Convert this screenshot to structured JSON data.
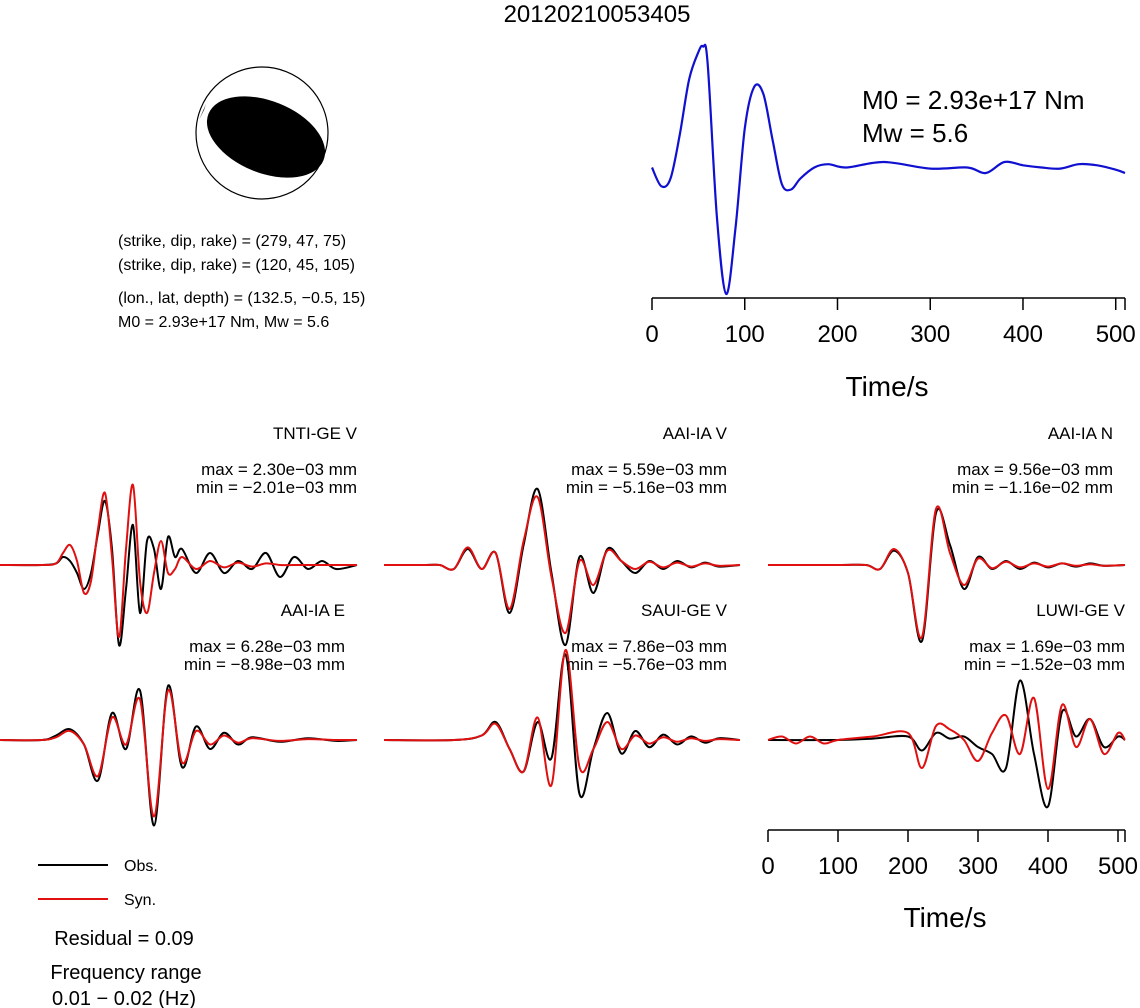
{
  "title": "20120210053405",
  "beachball": {
    "nodal_plane_1": "(strike, dip, rake) = (279, 47, 75)",
    "nodal_plane_2": "(strike, dip, rake) = (120, 45, 105)",
    "location": "(lon., lat, depth) = (132.5, −0.5, 15)",
    "moment_line": "M0 = 2.93e+17 Nm, Mw = 5.6"
  },
  "stf": {
    "m0_label": "M0 = 2.93e+17 Nm",
    "mw_label": "Mw = 5.6",
    "color": "#1010d0"
  },
  "time_axis": {
    "label": "Time/s",
    "ticks": [
      "0",
      "100",
      "200",
      "300",
      "400",
      "500"
    ]
  },
  "legend": {
    "obs_label": "Obs.",
    "syn_label": "Syn.",
    "obs_color": "#000000",
    "syn_color": "#e01010"
  },
  "residual": "Residual = 0.09",
  "frequency_title": "Frequency range",
  "frequency_value": "0.01 − 0.02 (Hz)",
  "chart_data": [
    {
      "type": "line",
      "description": "source time function",
      "x_unit": "s",
      "xlim": [
        0,
        510
      ],
      "x": [
        0,
        10,
        20,
        30,
        40,
        50,
        55,
        60,
        70,
        80,
        90,
        100,
        110,
        120,
        130,
        140,
        150,
        160,
        175,
        190,
        210,
        250,
        300,
        340,
        360,
        380,
        400,
        420,
        440,
        460,
        480,
        500,
        510
      ],
      "values": [
        0.05,
        -0.12,
        -0.05,
        0.35,
        0.85,
        1.1,
        1.15,
        1.0,
        -0.4,
        -1.1,
        -0.5,
        0.4,
        0.78,
        0.72,
        0.3,
        -0.1,
        -0.15,
        -0.05,
        0.05,
        0.08,
        0.05,
        0.1,
        0.04,
        0.05,
        0.0,
        0.1,
        0.07,
        0.05,
        0.04,
        0.08,
        0.07,
        0.03,
        0.0
      ]
    },
    {
      "type": "line",
      "station": "TNTI-GE V",
      "max": "max = 2.30e−03 mm",
      "min": "min = −2.01e−03 mm",
      "series": [
        {
          "name": "Obs.",
          "x": [
            0,
            60,
            80,
            90,
            100,
            110,
            120,
            130,
            140,
            150,
            160,
            170,
            180,
            190,
            200,
            210,
            220,
            230,
            240,
            250,
            260,
            280,
            300,
            320,
            340,
            360,
            380,
            400,
            420,
            440,
            460,
            480,
            510
          ],
          "values": [
            0,
            0,
            0.02,
            0.1,
            0.05,
            -0.1,
            -0.3,
            -0.1,
            0.4,
            0.8,
            0.2,
            -1.0,
            -0.3,
            0.5,
            -0.6,
            0.3,
            0.2,
            -0.3,
            0.35,
            0.1,
            0.2,
            -0.1,
            0.15,
            -0.1,
            0.05,
            -0.05,
            0.15,
            -0.15,
            0.1,
            -0.05,
            0.05,
            -0.05,
            0
          ]
        },
        {
          "name": "Syn.",
          "x": [
            0,
            60,
            80,
            90,
            100,
            110,
            120,
            130,
            140,
            150,
            160,
            170,
            180,
            190,
            200,
            210,
            220,
            230,
            240,
            250,
            260,
            280,
            300,
            320,
            340,
            360,
            380,
            400,
            420,
            440,
            460,
            480,
            510
          ],
          "values": [
            0,
            0,
            0.02,
            0.15,
            0.25,
            0.05,
            -0.35,
            -0.2,
            0.45,
            0.9,
            0.1,
            -0.9,
            0.2,
            1.0,
            -0.2,
            -0.6,
            -0.1,
            0.3,
            -0.1,
            -0.05,
            0.1,
            -0.05,
            0.05,
            -0.03,
            0.03,
            -0.02,
            0.02,
            0,
            0,
            0,
            0,
            0,
            0
          ]
        }
      ]
    },
    {
      "type": "line",
      "station": "AAI-IA V",
      "max": "max = 5.59e−03 mm",
      "min": "min = −5.16e−03 mm",
      "series": [
        {
          "name": "Obs.",
          "x": [
            0,
            60,
            80,
            100,
            120,
            140,
            160,
            180,
            200,
            220,
            240,
            260,
            280,
            300,
            320,
            340,
            360,
            380,
            400,
            420,
            440,
            460,
            480,
            510
          ],
          "values": [
            0,
            0,
            0,
            -0.05,
            0.2,
            -0.05,
            0.15,
            -0.6,
            0.25,
            0.95,
            -0.1,
            -1.0,
            0.1,
            -0.35,
            0.2,
            0.05,
            -0.1,
            0.05,
            -0.05,
            0.05,
            -0.03,
            0.03,
            -0.02,
            0
          ]
        },
        {
          "name": "Syn.",
          "x": [
            0,
            60,
            80,
            100,
            120,
            140,
            160,
            180,
            200,
            220,
            240,
            260,
            280,
            300,
            320,
            340,
            360,
            380,
            400,
            420,
            440,
            460,
            480,
            510
          ],
          "values": [
            0,
            0,
            0,
            -0.05,
            0.22,
            -0.05,
            0.15,
            -0.55,
            0.3,
            0.85,
            -0.15,
            -0.85,
            0.05,
            -0.25,
            0.18,
            0.05,
            -0.05,
            0.04,
            -0.03,
            0.03,
            -0.02,
            0.02,
            -0.01,
            0
          ]
        }
      ]
    },
    {
      "type": "line",
      "station": "AAI-IA N",
      "max": "max = 9.56e−03 mm",
      "min": "min = −1.16e−02 mm",
      "series": [
        {
          "name": "Obs.",
          "x": [
            0,
            100,
            140,
            160,
            180,
            200,
            220,
            240,
            260,
            280,
            300,
            320,
            340,
            360,
            380,
            400,
            420,
            440,
            460,
            480,
            510
          ],
          "values": [
            0,
            0,
            0,
            -0.05,
            0.18,
            -0.1,
            -0.95,
            0.65,
            0.25,
            -0.3,
            0.1,
            -0.05,
            0.05,
            -0.05,
            0.03,
            -0.03,
            0.02,
            -0.02,
            0.02,
            -0.01,
            0
          ]
        },
        {
          "name": "Syn.",
          "x": [
            0,
            100,
            140,
            160,
            180,
            200,
            220,
            240,
            260,
            280,
            300,
            320,
            340,
            360,
            380,
            400,
            420,
            440,
            460,
            480,
            510
          ],
          "values": [
            0,
            0,
            0,
            -0.05,
            0.2,
            -0.1,
            -0.9,
            0.7,
            0.15,
            -0.25,
            0.08,
            -0.04,
            0.04,
            -0.03,
            0.02,
            -0.02,
            0.02,
            -0.01,
            0.01,
            -0.01,
            0
          ]
        }
      ]
    },
    {
      "type": "line",
      "station": "AAI-IA E",
      "max": "max = 6.28e−03 mm",
      "min": "min = −8.98e−03 mm",
      "series": [
        {
          "name": "Obs.",
          "x": [
            0,
            60,
            80,
            100,
            120,
            140,
            160,
            180,
            200,
            220,
            240,
            260,
            280,
            300,
            320,
            340,
            360,
            400,
            440,
            480,
            510
          ],
          "values": [
            0,
            0,
            0.05,
            0.12,
            -0.05,
            -0.45,
            0.3,
            -0.1,
            0.55,
            -0.95,
            0.6,
            -0.3,
            0.15,
            -0.1,
            0.08,
            -0.05,
            0.03,
            -0.02,
            0.02,
            -0.01,
            0
          ]
        },
        {
          "name": "Syn.",
          "x": [
            0,
            60,
            80,
            100,
            120,
            140,
            160,
            180,
            200,
            220,
            240,
            260,
            280,
            300,
            320,
            340,
            360,
            400,
            440,
            480,
            510
          ],
          "values": [
            0,
            0,
            0.03,
            0.1,
            -0.05,
            -0.4,
            0.25,
            -0.05,
            0.45,
            -0.85,
            0.55,
            -0.25,
            0.1,
            -0.05,
            0.05,
            -0.03,
            0.02,
            -0.01,
            0.01,
            0,
            0
          ]
        }
      ]
    },
    {
      "type": "line",
      "station": "SAUI-GE V",
      "max": "max = 7.86e−03 mm",
      "min": "min = −5.76e−03 mm",
      "series": [
        {
          "name": "Obs.",
          "x": [
            0,
            100,
            140,
            160,
            180,
            200,
            220,
            240,
            260,
            280,
            300,
            320,
            340,
            360,
            380,
            400,
            420,
            440,
            460,
            480,
            510
          ],
          "values": [
            0,
            0,
            0.05,
            0.2,
            -0.1,
            -0.35,
            0.2,
            -0.2,
            0.95,
            -0.6,
            -0.1,
            0.3,
            -0.15,
            0.1,
            -0.08,
            0.06,
            -0.05,
            0.04,
            -0.03,
            0.02,
            0
          ]
        },
        {
          "name": "Syn.",
          "x": [
            0,
            100,
            140,
            160,
            180,
            200,
            220,
            240,
            260,
            280,
            300,
            320,
            340,
            360,
            380,
            400,
            420,
            440,
            460,
            480,
            510
          ],
          "values": [
            0,
            0,
            0.05,
            0.18,
            -0.1,
            -0.35,
            0.25,
            -0.5,
            1.0,
            -0.3,
            -0.1,
            0.2,
            -0.1,
            0.05,
            -0.04,
            0.03,
            -0.02,
            0.02,
            -0.01,
            0.01,
            0
          ]
        }
      ]
    },
    {
      "type": "line",
      "station": "LUWI-GE V",
      "max": "max = 1.69e−03 mm",
      "min": "min = −1.52e−03 mm",
      "series": [
        {
          "name": "Obs.",
          "x": [
            0,
            100,
            150,
            200,
            220,
            240,
            260,
            280,
            300,
            320,
            340,
            360,
            380,
            400,
            420,
            440,
            460,
            480,
            500,
            510
          ],
          "values": [
            0,
            0,
            0.02,
            0.05,
            -0.15,
            0.1,
            0.02,
            0.05,
            -0.1,
            -0.2,
            -0.4,
            0.85,
            -0.2,
            -0.95,
            0.4,
            0.05,
            0.3,
            -0.1,
            0.05,
            0
          ]
        },
        {
          "name": "Syn.",
          "x": [
            0,
            20,
            40,
            60,
            80,
            100,
            150,
            200,
            220,
            240,
            260,
            280,
            300,
            320,
            340,
            360,
            380,
            400,
            420,
            440,
            460,
            480,
            500,
            510
          ],
          "values": [
            0,
            0.05,
            -0.05,
            0.05,
            -0.05,
            0,
            0.05,
            0.1,
            -0.4,
            0.2,
            0.15,
            0.0,
            -0.3,
            0.1,
            0.35,
            -0.2,
            0.6,
            -0.7,
            0.5,
            -0.1,
            0.3,
            -0.2,
            0.1,
            0
          ]
        }
      ]
    }
  ]
}
